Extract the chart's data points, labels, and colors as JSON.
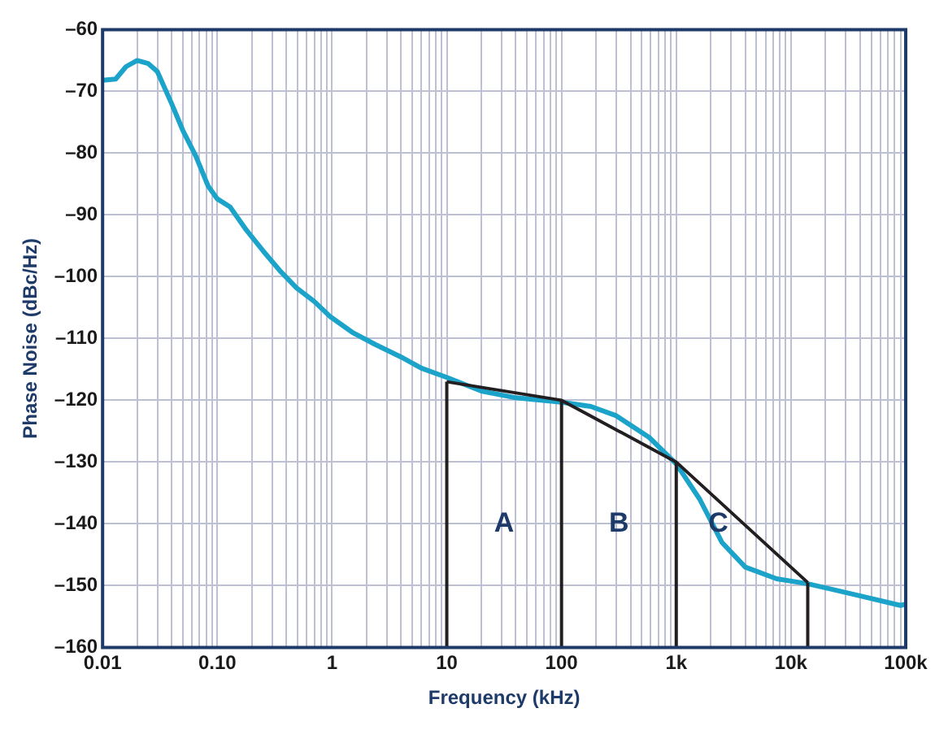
{
  "chart_data": {
    "type": "line",
    "xlabel": "Frequency (kHz)",
    "ylabel": "Phase Noise (dBc/Hz)",
    "log": "x",
    "grid": true,
    "legend": false,
    "marker": "none",
    "line_style": "solid",
    "xlim": [
      0.01,
      100000
    ],
    "ylim": [
      -160,
      -60
    ],
    "xticks": [
      {
        "value": 0.01,
        "label": "0.01"
      },
      {
        "value": 0.1,
        "label": "0.10"
      },
      {
        "value": 1,
        "label": "1"
      },
      {
        "value": 10,
        "label": "10"
      },
      {
        "value": 100,
        "label": "100"
      },
      {
        "value": 1000,
        "label": "1k"
      },
      {
        "value": 10000,
        "label": "10k"
      },
      {
        "value": 100000,
        "label": "100k"
      },
      {
        "value": 0.02,
        "label": null
      },
      {
        "value": 0.03,
        "label": null
      },
      {
        "value": 0.04,
        "label": null
      },
      {
        "value": 0.05,
        "label": null
      },
      {
        "value": 0.06,
        "label": null
      },
      {
        "value": 0.07,
        "label": null
      },
      {
        "value": 0.08,
        "label": null
      },
      {
        "value": 0.09,
        "label": null
      },
      {
        "value": 0.2,
        "label": null
      },
      {
        "value": 0.3,
        "label": null
      },
      {
        "value": 0.4,
        "label": null
      },
      {
        "value": 0.5,
        "label": null
      },
      {
        "value": 0.6,
        "label": null
      },
      {
        "value": 0.7,
        "label": null
      },
      {
        "value": 0.8,
        "label": null
      },
      {
        "value": 0.9,
        "label": null
      },
      {
        "value": 2,
        "label": null
      },
      {
        "value": 3,
        "label": null
      },
      {
        "value": 4,
        "label": null
      },
      {
        "value": 5,
        "label": null
      },
      {
        "value": 6,
        "label": null
      },
      {
        "value": 7,
        "label": null
      },
      {
        "value": 8,
        "label": null
      },
      {
        "value": 9,
        "label": null
      },
      {
        "value": 20,
        "label": null
      },
      {
        "value": 30,
        "label": null
      },
      {
        "value": 40,
        "label": null
      },
      {
        "value": 50,
        "label": null
      },
      {
        "value": 60,
        "label": null
      },
      {
        "value": 70,
        "label": null
      },
      {
        "value": 80,
        "label": null
      },
      {
        "value": 90,
        "label": null
      },
      {
        "value": 200,
        "label": null
      },
      {
        "value": 300,
        "label": null
      },
      {
        "value": 400,
        "label": null
      },
      {
        "value": 500,
        "label": null
      },
      {
        "value": 600,
        "label": null
      },
      {
        "value": 700,
        "label": null
      },
      {
        "value": 800,
        "label": null
      },
      {
        "value": 900,
        "label": null
      },
      {
        "value": 2000,
        "label": null
      },
      {
        "value": 3000,
        "label": null
      },
      {
        "value": 4000,
        "label": null
      },
      {
        "value": 5000,
        "label": null
      },
      {
        "value": 6000,
        "label": null
      },
      {
        "value": 7000,
        "label": null
      },
      {
        "value": 8000,
        "label": null
      },
      {
        "value": 9000,
        "label": null
      },
      {
        "value": 20000,
        "label": null
      },
      {
        "value": 30000,
        "label": null
      },
      {
        "value": 40000,
        "label": null
      },
      {
        "value": 50000,
        "label": null
      },
      {
        "value": 60000,
        "label": null
      },
      {
        "value": 70000,
        "label": null
      },
      {
        "value": 80000,
        "label": null
      },
      {
        "value": 90000,
        "label": null
      }
    ],
    "yticks": [
      {
        "value": -160,
        "label": "–160"
      },
      {
        "value": -150,
        "label": "–150"
      },
      {
        "value": -140,
        "label": "–140"
      },
      {
        "value": -130,
        "label": "–130"
      },
      {
        "value": -120,
        "label": "–120"
      },
      {
        "value": -110,
        "label": "–110"
      },
      {
        "value": -100,
        "label": "–100"
      },
      {
        "value": -90,
        "label": "–90"
      },
      {
        "value": -80,
        "label": "–80"
      },
      {
        "value": -70,
        "label": "–70"
      },
      {
        "value": -60,
        "label": "–60"
      }
    ],
    "series": [
      {
        "color": "#1ba3c9",
        "x": [
          0.01,
          0.013,
          0.016,
          0.02,
          0.025,
          0.03,
          0.04,
          0.05,
          0.065,
          0.083,
          0.1,
          0.129,
          0.18,
          0.25,
          0.35,
          0.49,
          0.7,
          0.97,
          1.5,
          2.4,
          4,
          6,
          10,
          20,
          40,
          100,
          180,
          300,
          580,
          1000,
          1600,
          2500,
          4000,
          7500,
          14000,
          37000,
          90000,
          100000
        ],
        "values": [
          -68.2,
          -68,
          -66,
          -65,
          -65.5,
          -66.8,
          -72,
          -76.3,
          -80.5,
          -85.3,
          -87.4,
          -88.7,
          -92.5,
          -95.8,
          -99,
          -101.8,
          -104,
          -106.5,
          -109,
          -111,
          -113,
          -114.8,
          -116.3,
          -118.5,
          -119.6,
          -120.3,
          -121,
          -122.5,
          -126,
          -130.3,
          -136,
          -143,
          -147,
          -148.9,
          -149.7,
          -151.5,
          -153.2,
          -153
        ]
      },
      {
        "color": "#231f20",
        "x": [
          10,
          100,
          1000,
          14000
        ],
        "values": [
          -117,
          -120,
          -130,
          -149.5
        ]
      },
      {
        "color": "#231f20",
        "x": [
          10,
          10
        ],
        "values": [
          -160,
          -117
        ]
      },
      {
        "color": "#231f20",
        "x": [
          100,
          100
        ],
        "values": [
          -160,
          -120
        ]
      },
      {
        "color": "#231f20",
        "x": [
          1000,
          1000
        ],
        "values": [
          -160,
          -130
        ]
      },
      {
        "color": "#231f20",
        "x": [
          14000,
          14000
        ],
        "values": [
          -160,
          -149.5
        ]
      }
    ],
    "annotations": [
      "A",
      "B",
      "C"
    ]
  }
}
